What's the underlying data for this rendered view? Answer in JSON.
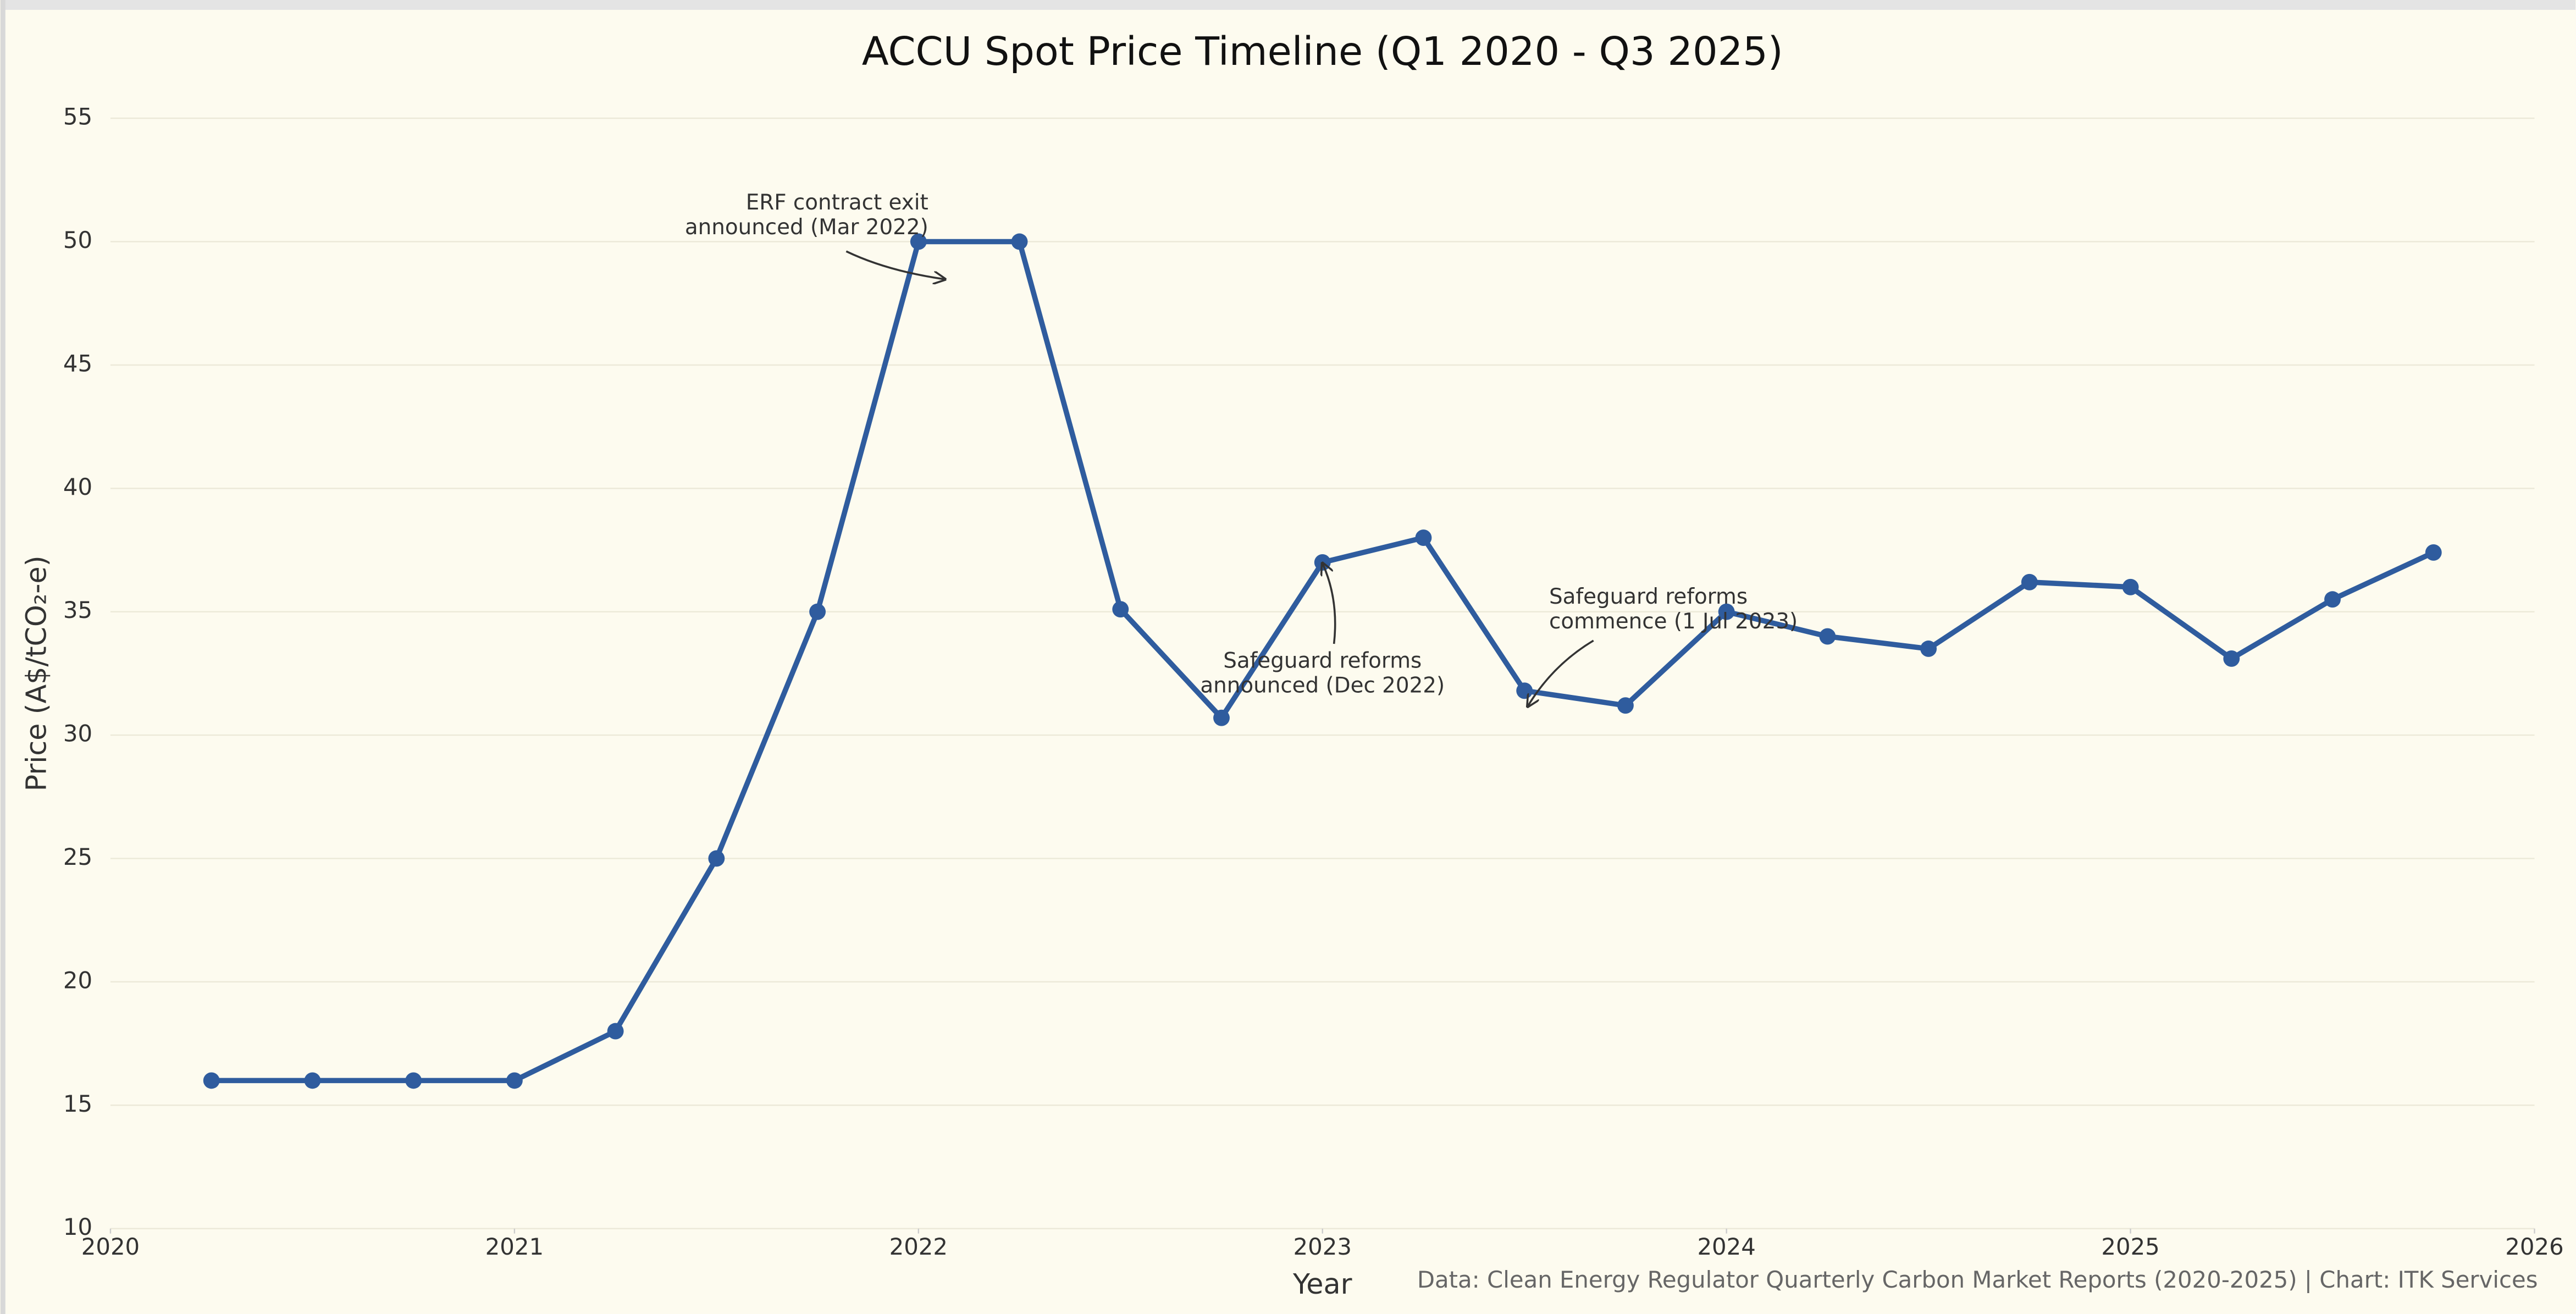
{
  "chart_data": {
    "type": "line",
    "title": "ACCU Spot Price Timeline (Q1 2020 - Q3 2025)",
    "x_label": "Year",
    "y_label": "Price (A$/tCO₂-e)",
    "source": "Data: Clean Energy Regulator Quarterly Carbon Market Reports (2020-2025) | Chart: ITK Services",
    "x": [
      2020.25,
      2020.5,
      2020.75,
      2021.0,
      2021.25,
      2021.5,
      2021.75,
      2022.0,
      2022.25,
      2022.5,
      2022.75,
      2023.0,
      2023.25,
      2023.5,
      2023.75,
      2024.0,
      2024.25,
      2024.5,
      2024.75,
      2025.0,
      2025.25,
      2025.5,
      2025.75
    ],
    "series": [
      {
        "color": "#2f5c9e",
        "values": [
          16,
          16,
          16,
          16,
          18,
          25,
          35,
          50,
          50,
          35.1,
          30.7,
          37,
          38,
          31.8,
          31.2,
          35,
          34,
          33.5,
          36.2,
          36,
          33.1,
          35.5,
          37.4
        ]
      }
    ],
    "xlim": [
      2020,
      2026
    ],
    "xticks": [
      2020,
      2021,
      2022,
      2023,
      2024,
      2025,
      2026
    ],
    "ylim": [
      10,
      55
    ],
    "yticks": [
      10,
      15,
      20,
      25,
      30,
      35,
      40,
      45,
      50,
      55
    ],
    "grid": true,
    "annotations": [
      {
        "text": [
          "ERF contract exit",
          "announced (Mar 2022)"
        ]
      },
      {
        "text": [
          "Safeguard reforms",
          "announced (Dec 2022)"
        ]
      },
      {
        "text": [
          "Safeguard reforms",
          "commence (1 Jul 2023)"
        ]
      }
    ]
  }
}
